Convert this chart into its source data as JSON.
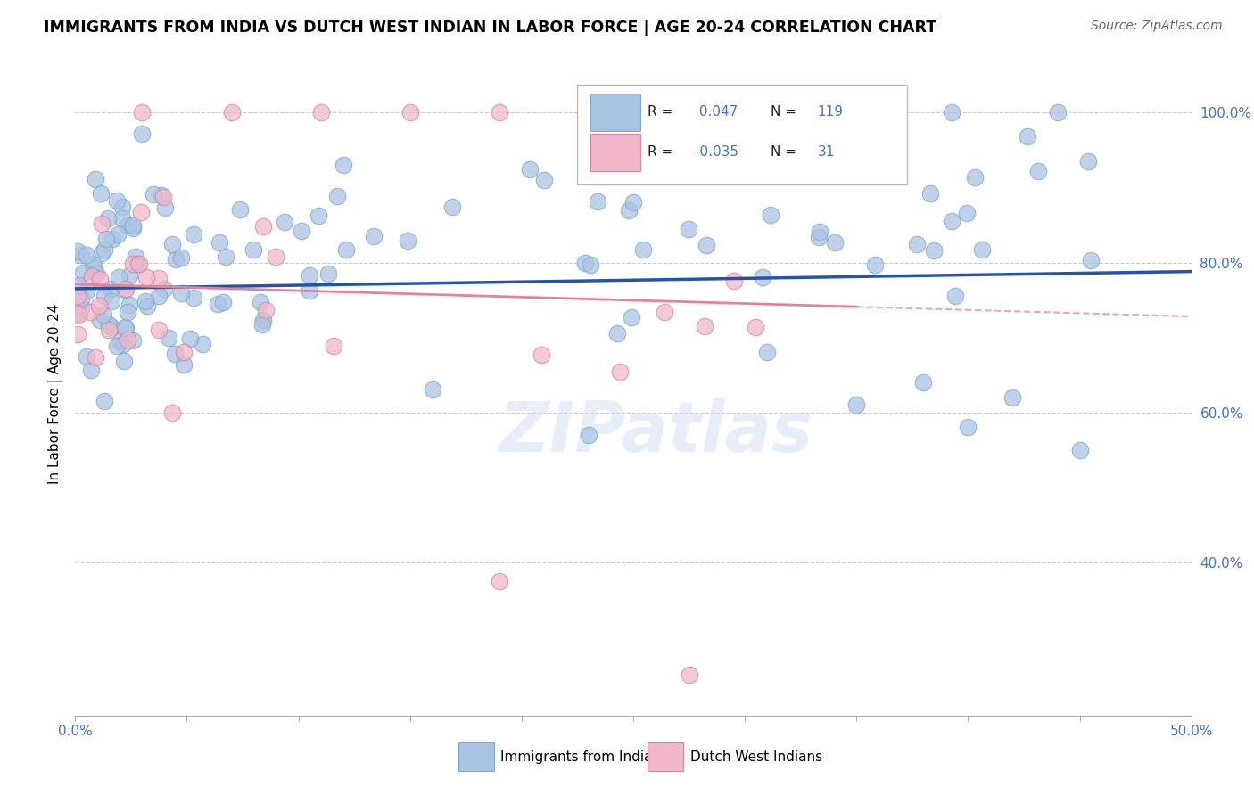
{
  "title": "IMMIGRANTS FROM INDIA VS DUTCH WEST INDIAN IN LABOR FORCE | AGE 20-24 CORRELATION CHART",
  "source": "Source: ZipAtlas.com",
  "ylabel": "In Labor Force | Age 20-24",
  "xlim": [
    0.0,
    0.5
  ],
  "ylim": [
    0.195,
    1.055
  ],
  "xticks": [
    0.0,
    0.05,
    0.1,
    0.15,
    0.2,
    0.25,
    0.3,
    0.35,
    0.4,
    0.45,
    0.5
  ],
  "ytick_positions": [
    0.4,
    0.6,
    0.8,
    1.0
  ],
  "ytick_labels": [
    "40.0%",
    "60.0%",
    "80.0%",
    "100.0%"
  ],
  "R_blue": 0.047,
  "N_blue": 119,
  "R_pink": -0.035,
  "N_pink": 31,
  "legend_label_blue": "Immigrants from India",
  "legend_label_pink": "Dutch West Indians",
  "background_color": "#ffffff",
  "blue_color": "#aac4e4",
  "blue_edge": "#7aaad0",
  "pink_color": "#f0b8c8",
  "pink_edge": "#e080a0",
  "trend_blue_color": "#2255aa",
  "trend_pink_color": "#e8809a",
  "grid_color": "#cccccc",
  "watermark": "ZIPatlas",
  "trend_blue_x0": 0.0,
  "trend_blue_x1": 0.5,
  "trend_blue_y0": 0.765,
  "trend_blue_y1": 0.788,
  "trend_pink_x0": 0.0,
  "trend_pink_x1": 0.5,
  "trend_pink_y0": 0.771,
  "trend_pink_y1": 0.728
}
